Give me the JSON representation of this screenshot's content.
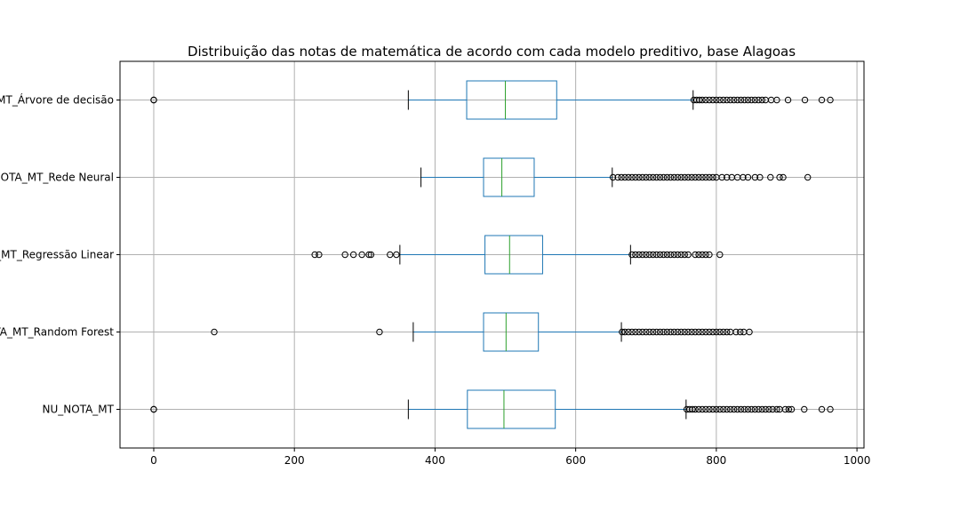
{
  "chart_data": {
    "type": "box",
    "orientation": "horizontal",
    "title": "Distribuição das notas de matemática de acordo com cada modelo preditivo, base Alagoas",
    "xlabel": "",
    "ylabel": "",
    "xlim": [
      -48,
      1010
    ],
    "xticks": [
      0,
      200,
      400,
      600,
      800,
      1000
    ],
    "xtick_labels": [
      "0",
      "200",
      "400",
      "600",
      "800",
      "1000"
    ],
    "grid": true,
    "colors": {
      "box": "#1f77b4",
      "median": "#2ca02c",
      "outlier": "#000000",
      "grid": "#b0b0b0"
    },
    "series": [
      {
        "label": "NU_NOTA_MT",
        "whisker_low": 362,
        "q1": 446,
        "median": 498,
        "q3": 571,
        "whisker_high": 757,
        "outliers": [
          0,
          0,
          758,
          762,
          766,
          770,
          775,
          780,
          785,
          790,
          795,
          800,
          805,
          810,
          815,
          820,
          825,
          830,
          835,
          840,
          845,
          850,
          855,
          860,
          865,
          870,
          875,
          880,
          886,
          890,
          898,
          903,
          907,
          925,
          950,
          962
        ]
      },
      {
        "label": "NOTA_MT_Random Forest",
        "whisker_low": 369,
        "q1": 469,
        "median": 501,
        "q3": 547,
        "whisker_high": 665,
        "outliers": [
          86,
          321,
          666,
          670,
          675,
          680,
          685,
          690,
          695,
          700,
          705,
          710,
          715,
          720,
          725,
          730,
          735,
          740,
          745,
          750,
          755,
          760,
          765,
          770,
          775,
          780,
          785,
          790,
          795,
          800,
          805,
          810,
          815,
          820,
          828,
          834,
          839,
          847
        ]
      },
      {
        "label": "NOTA_MT_Regressão Linear",
        "whisker_low": 350,
        "q1": 471,
        "median": 506,
        "q3": 553,
        "whisker_high": 678,
        "outliers": [
          229,
          235,
          272,
          284,
          296,
          306,
          309,
          336,
          345,
          680,
          685,
          690,
          695,
          700,
          705,
          710,
          715,
          720,
          725,
          730,
          735,
          740,
          745,
          750,
          755,
          760,
          770,
          775,
          780,
          785,
          790,
          805
        ]
      },
      {
        "label": "NOTA_MT_Rede Neural",
        "whisker_low": 380,
        "q1": 469,
        "median": 495,
        "q3": 541,
        "whisker_high": 652,
        "outliers": [
          653,
          660,
          665,
          670,
          675,
          680,
          685,
          690,
          695,
          700,
          705,
          710,
          715,
          720,
          725,
          730,
          735,
          740,
          745,
          750,
          755,
          760,
          765,
          770,
          775,
          780,
          785,
          790,
          795,
          800,
          808,
          815,
          822,
          830,
          838,
          845,
          855,
          862,
          877,
          890,
          895,
          930
        ]
      },
      {
        "label": "NOTA_MT_Árvore de decisão",
        "whisker_low": 362,
        "q1": 445,
        "median": 500,
        "q3": 573,
        "whisker_high": 767,
        "outliers": [
          0,
          0,
          768,
          772,
          776,
          780,
          785,
          790,
          795,
          800,
          805,
          810,
          815,
          820,
          825,
          830,
          835,
          840,
          845,
          850,
          855,
          860,
          865,
          870,
          878,
          886,
          902,
          926,
          950,
          962
        ]
      }
    ]
  }
}
